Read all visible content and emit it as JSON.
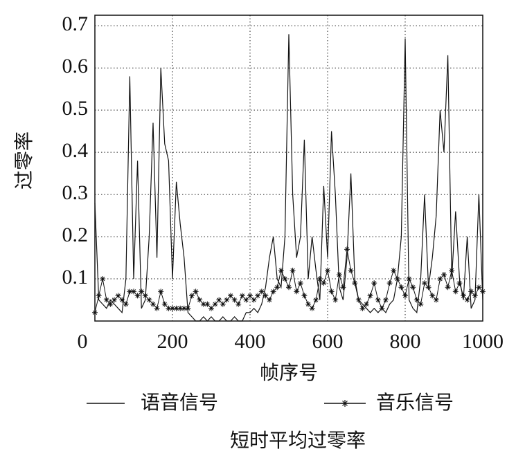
{
  "chart_data": {
    "type": "line",
    "caption": "短时平均过零率",
    "xlabel": "帧序号",
    "ylabel": "过零率",
    "x": [
      0,
      10,
      20,
      30,
      40,
      50,
      60,
      70,
      80,
      90,
      100,
      110,
      120,
      130,
      140,
      150,
      160,
      170,
      180,
      190,
      200,
      210,
      220,
      230,
      240,
      250,
      260,
      270,
      280,
      290,
      300,
      310,
      320,
      330,
      340,
      350,
      360,
      370,
      380,
      390,
      400,
      410,
      420,
      430,
      440,
      450,
      460,
      470,
      480,
      490,
      500,
      510,
      520,
      530,
      540,
      550,
      560,
      570,
      580,
      590,
      600,
      610,
      620,
      630,
      640,
      650,
      660,
      670,
      680,
      690,
      700,
      710,
      720,
      730,
      740,
      750,
      760,
      770,
      780,
      790,
      800,
      810,
      820,
      830,
      840,
      850,
      860,
      870,
      880,
      890,
      900,
      910,
      920,
      930,
      940,
      950,
      960,
      970,
      980,
      990,
      1000
    ],
    "series": [
      {
        "name": "语音信号",
        "color": "#111111",
        "marker": "none",
        "values": [
          0.28,
          0.05,
          0.04,
          0.03,
          0.05,
          0.04,
          0.03,
          0.02,
          0.1,
          0.58,
          0.1,
          0.38,
          0.03,
          0.05,
          0.2,
          0.47,
          0.15,
          0.6,
          0.42,
          0.38,
          0.1,
          0.33,
          0.23,
          0.15,
          0.02,
          0.01,
          0.0,
          0.0,
          0.01,
          0.0,
          0.01,
          0.0,
          0.0,
          0.01,
          0.0,
          0.0,
          0.01,
          0.0,
          0.0,
          0.02,
          0.02,
          0.03,
          0.02,
          0.04,
          0.08,
          0.15,
          0.2,
          0.1,
          0.08,
          0.2,
          0.68,
          0.3,
          0.15,
          0.2,
          0.43,
          0.1,
          0.2,
          0.12,
          0.05,
          0.32,
          0.15,
          0.45,
          0.3,
          0.08,
          0.05,
          0.15,
          0.35,
          0.1,
          0.05,
          0.04,
          0.03,
          0.02,
          0.03,
          0.02,
          0.03,
          0.02,
          0.04,
          0.05,
          0.1,
          0.2,
          0.67,
          0.05,
          0.03,
          0.02,
          0.1,
          0.3,
          0.08,
          0.15,
          0.25,
          0.5,
          0.4,
          0.63,
          0.1,
          0.26,
          0.1,
          0.05,
          0.2,
          0.03,
          0.05,
          0.3,
          0.05
        ]
      },
      {
        "name": "音乐信号",
        "color": "#111111",
        "marker": "star",
        "values": [
          0.02,
          0.06,
          0.1,
          0.05,
          0.04,
          0.05,
          0.06,
          0.05,
          0.04,
          0.07,
          0.07,
          0.06,
          0.07,
          0.06,
          0.05,
          0.04,
          0.03,
          0.07,
          0.04,
          0.03,
          0.03,
          0.03,
          0.03,
          0.03,
          0.03,
          0.06,
          0.07,
          0.05,
          0.04,
          0.04,
          0.03,
          0.04,
          0.05,
          0.04,
          0.05,
          0.06,
          0.05,
          0.04,
          0.06,
          0.05,
          0.06,
          0.05,
          0.06,
          0.07,
          0.06,
          0.05,
          0.07,
          0.08,
          0.12,
          0.1,
          0.08,
          0.12,
          0.07,
          0.09,
          0.06,
          0.04,
          0.03,
          0.05,
          0.1,
          0.09,
          0.12,
          0.07,
          0.05,
          0.11,
          0.08,
          0.17,
          0.12,
          0.09,
          0.05,
          0.03,
          0.04,
          0.06,
          0.09,
          0.05,
          0.03,
          0.05,
          0.09,
          0.12,
          0.1,
          0.08,
          0.06,
          0.1,
          0.08,
          0.05,
          0.04,
          0.09,
          0.08,
          0.06,
          0.05,
          0.1,
          0.11,
          0.08,
          0.12,
          0.07,
          0.09,
          0.06,
          0.05,
          0.07,
          0.06,
          0.08,
          0.07
        ]
      }
    ],
    "xlim": [
      0,
      1000
    ],
    "xticks": [
      0,
      200,
      400,
      600,
      800,
      1000
    ],
    "ylim": [
      0,
      0.725
    ],
    "yticks": [
      0.1,
      0.2,
      0.3,
      0.4,
      0.5,
      0.6,
      0.7
    ],
    "grid": true,
    "legend": "bottom"
  }
}
